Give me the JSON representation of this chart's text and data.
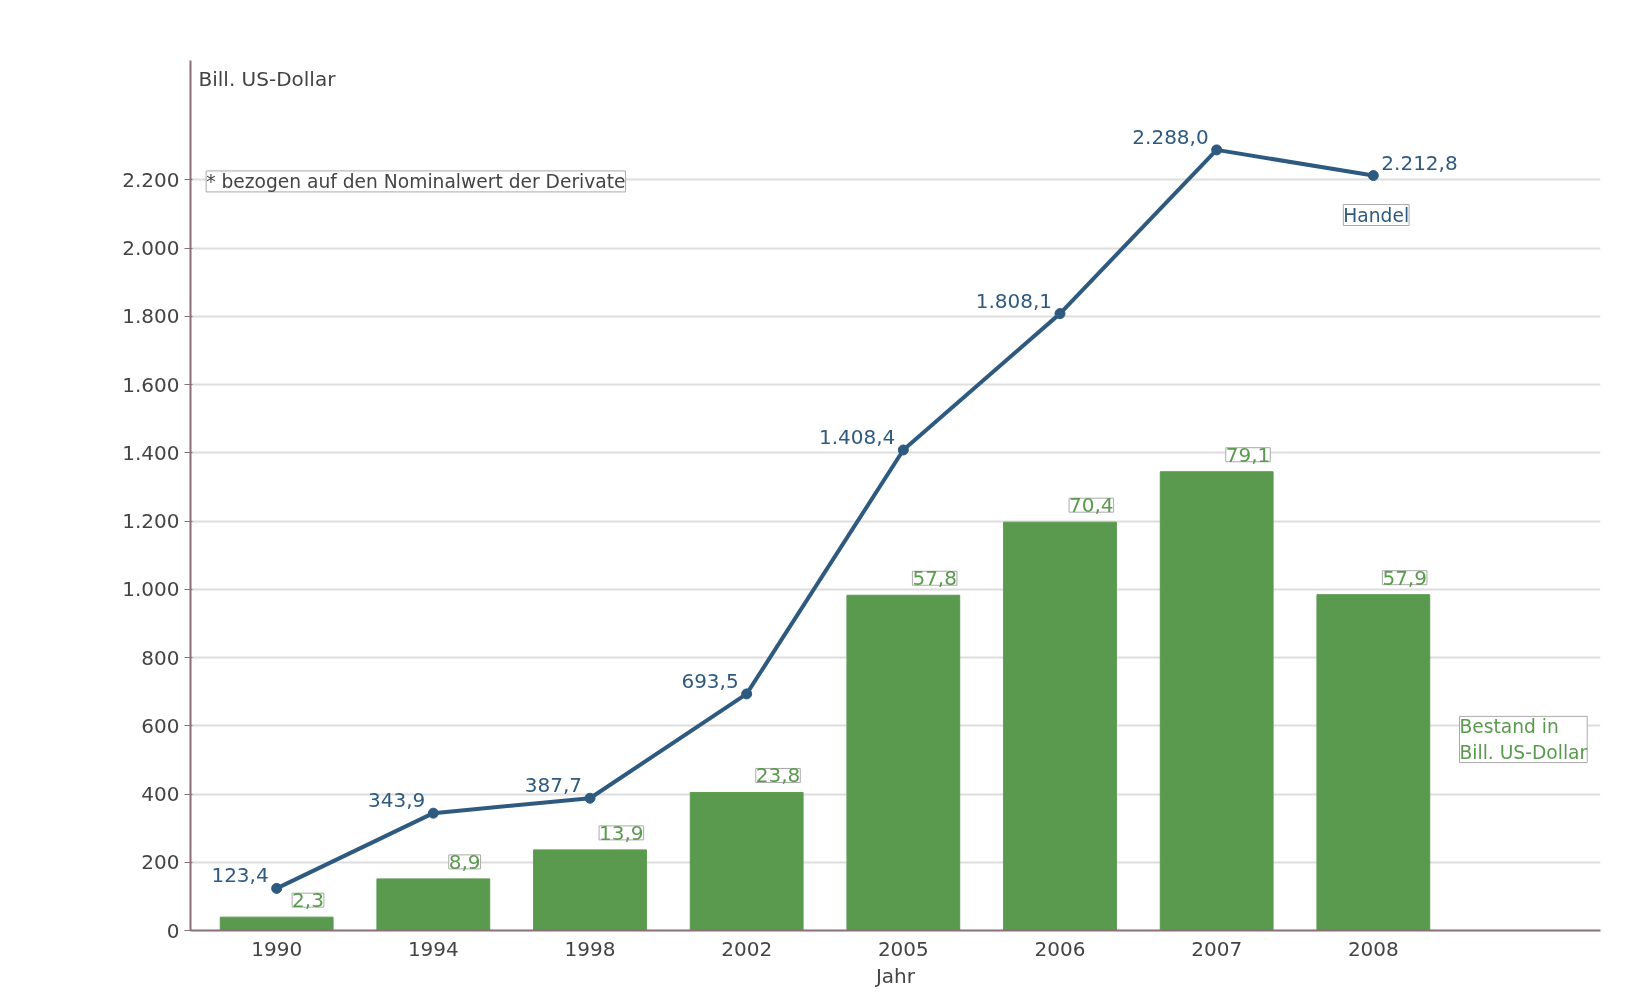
{
  "chart_data": {
    "type": "line",
    "ylabel": "Bill. US-Dollar",
    "xlabel": "Jahr",
    "categories": [
      "1990",
      "1994",
      "1998",
      "2002",
      "2005",
      "2006",
      "2007",
      "2008"
    ],
    "series": [
      {
        "name": "Bestand in Bill. US-Dollar",
        "type": "bar",
        "axis": "y2",
        "color": "#5a9a4e",
        "values": [
          2.3,
          8.9,
          13.9,
          23.8,
          57.8,
          70.4,
          79.1,
          57.9
        ],
        "value_labels": [
          "2,3",
          "8,9",
          "13,9",
          "23,8",
          "57,8",
          "70,4",
          "79,1",
          "57,9"
        ]
      },
      {
        "name": "Handel",
        "color": "#2e5a80",
        "values": [
          123.4,
          343.9,
          387.7,
          693.5,
          1408.4,
          1808.1,
          2288.0,
          2212.8
        ],
        "value_labels": [
          "123,4",
          "343,9",
          "387,7",
          "693,5",
          "1.408,4",
          "1.808,1",
          "2.288,0",
          "2.212,8"
        ]
      }
    ],
    "ylim": [
      0,
      2550
    ],
    "y2lim": [
      0,
      150
    ],
    "yticks": [
      0,
      200,
      400,
      600,
      800,
      {
        "value": 1000,
        "label": "1.000"
      },
      {
        "value": 1200,
        "label": "1.200"
      },
      {
        "value": 1400,
        "label": "1.400"
      },
      {
        "value": 1600,
        "label": "1.600"
      },
      {
        "value": 1800,
        "label": "1.800"
      },
      {
        "value": 2000,
        "label": "2.000"
      },
      {
        "value": 2200,
        "label": "2.200"
      }
    ],
    "grid": "y",
    "legend": false,
    "marker": "circle",
    "line_style": "solid",
    "annotations": [
      "* bezogen auf den Nominalwert der Derivate"
    ]
  }
}
